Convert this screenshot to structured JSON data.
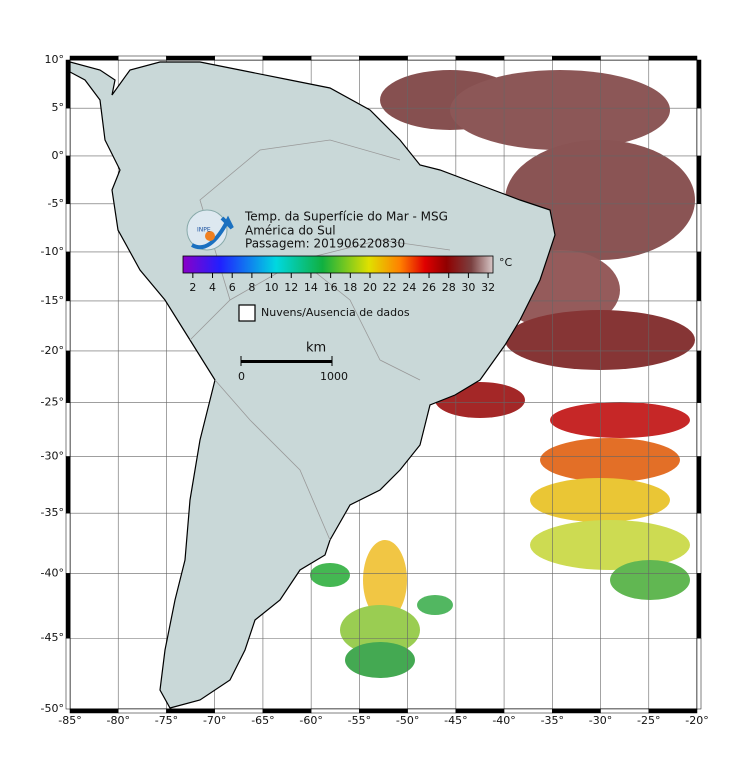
{
  "map": {
    "title": "Temp. da Superfície do Mar - MSG",
    "subtitle": "América do Sul",
    "pass": "Passagem: 201906220830",
    "logo_text": "INPE",
    "colorbar": {
      "lim": [
        1,
        32.5
      ],
      "ticks": [
        2,
        4,
        6,
        8,
        10,
        12,
        14,
        16,
        18,
        20,
        22,
        24,
        26,
        28,
        30,
        32
      ],
      "unit": "°C"
    },
    "legend": "Nuvens/Ausencia de dados",
    "scale": {
      "unit": "km",
      "ticks": [
        "0",
        "1000"
      ]
    },
    "xlim": [
      -85,
      -20
    ],
    "ylim": [
      -50,
      10
    ],
    "xticks": [
      {
        "value": -85,
        "label": "-85°"
      },
      {
        "value": -80,
        "label": "-80°"
      },
      {
        "value": -75,
        "label": "-75°"
      },
      {
        "value": -70,
        "label": "-70°"
      },
      {
        "value": -65,
        "label": "-65°"
      },
      {
        "value": -60,
        "label": "-60°"
      },
      {
        "value": -55,
        "label": "-55°"
      },
      {
        "value": -50,
        "label": "-50°"
      },
      {
        "value": -45,
        "label": "-45°"
      },
      {
        "value": -40,
        "label": "-40°"
      },
      {
        "value": -35,
        "label": "-35°"
      },
      {
        "value": -30,
        "label": "-30°"
      },
      {
        "value": -25,
        "label": "-25°"
      },
      {
        "value": -20,
        "label": "-20°"
      }
    ],
    "yticks": [
      {
        "value": 10,
        "label": "10°"
      },
      {
        "value": 5,
        "label": "5°"
      },
      {
        "value": 0,
        "label": "0°"
      },
      {
        "value": -5,
        "label": "-5°"
      },
      {
        "value": -10,
        "label": "-10°"
      },
      {
        "value": -15,
        "label": "-15°"
      },
      {
        "value": -20,
        "label": "-20°"
      },
      {
        "value": -25,
        "label": "-25°"
      },
      {
        "value": -30,
        "label": "-30°"
      },
      {
        "value": -35,
        "label": "-35°"
      },
      {
        "value": -40,
        "label": "-40°"
      },
      {
        "value": -45,
        "label": "-45°"
      },
      {
        "value": -50,
        "label": "-50°"
      }
    ]
  }
}
